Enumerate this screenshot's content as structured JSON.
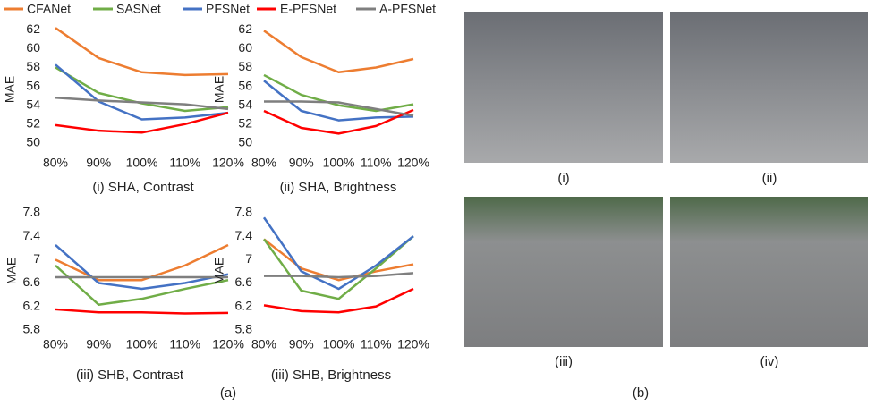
{
  "chart_data": [
    {
      "type": "line",
      "title": "(i) SHA, Contrast",
      "y_label": "MAE",
      "legend": "top",
      "grid": false,
      "categories": [
        "80%",
        "90%",
        "100%",
        "110%",
        "120%"
      ],
      "ylim": [
        48,
        62.5
      ],
      "yticks": [
        50,
        52,
        54,
        56,
        58,
        60,
        62
      ],
      "series": [
        {
          "name": "CFANet",
          "color": "#ed7d31",
          "values": [
            62.2,
            59.0,
            57.5,
            57.2,
            57.3
          ]
        },
        {
          "name": "SASNet",
          "color": "#70ad47",
          "values": [
            58.0,
            55.3,
            54.2,
            53.4,
            53.8
          ]
        },
        {
          "name": "PFSNet",
          "color": "#4472c4",
          "values": [
            58.3,
            54.4,
            52.5,
            52.7,
            53.2
          ]
        },
        {
          "name": "E-PFSNet",
          "color": "#ff0000",
          "values": [
            51.9,
            51.3,
            51.1,
            52.0,
            53.2
          ]
        },
        {
          "name": "A-PFSNet",
          "color": "#7f7f7f",
          "values": [
            54.8,
            54.5,
            54.3,
            54.1,
            53.6
          ]
        }
      ]
    },
    {
      "type": "line",
      "title": "(ii) SHA, Brightness",
      "y_label": "MAE",
      "grid": false,
      "categories": [
        "80%",
        "90%",
        "100%",
        "110%",
        "120%"
      ],
      "ylim": [
        48,
        62.5
      ],
      "yticks": [
        50,
        52,
        54,
        56,
        58,
        60,
        62
      ],
      "series": [
        {
          "color": "#ed7d31",
          "values": [
            61.9,
            59.1,
            57.5,
            58.0,
            58.9
          ]
        },
        {
          "color": "#70ad47",
          "values": [
            57.2,
            55.1,
            54.0,
            53.4,
            54.1
          ]
        },
        {
          "color": "#4472c4",
          "values": [
            56.6,
            53.4,
            52.4,
            52.7,
            52.8
          ]
        },
        {
          "color": "#ff0000",
          "values": [
            53.4,
            51.6,
            51.0,
            51.8,
            53.5
          ]
        },
        {
          "color": "#7f7f7f",
          "values": [
            54.4,
            54.4,
            54.3,
            53.6,
            52.9
          ]
        }
      ]
    },
    {
      "type": "line",
      "title": "(iii) SHB, Contrast",
      "y_label": "MAE",
      "grid": false,
      "categories": [
        "80%",
        "90%",
        "100%",
        "110%",
        "120%"
      ],
      "ylim": [
        5.4,
        7.8
      ],
      "yticks": [
        5.8,
        6.2,
        6.6,
        7,
        7.4,
        7.8
      ],
      "series": [
        {
          "color": "#ed7d31",
          "values": [
            7.0,
            6.65,
            6.65,
            6.9,
            7.25
          ]
        },
        {
          "color": "#70ad47",
          "values": [
            6.9,
            6.23,
            6.33,
            6.5,
            6.65
          ]
        },
        {
          "color": "#4472c4",
          "values": [
            7.25,
            6.6,
            6.5,
            6.6,
            6.75
          ]
        },
        {
          "color": "#ff0000",
          "values": [
            6.15,
            6.1,
            6.1,
            6.08,
            6.09
          ]
        },
        {
          "color": "#7f7f7f",
          "values": [
            6.7,
            6.7,
            6.7,
            6.7,
            6.7
          ]
        }
      ]
    },
    {
      "type": "line",
      "title": "(iii) SHB, Brightness",
      "y_label": "MAE",
      "grid": false,
      "categories": [
        "80%",
        "90%",
        "100%",
        "110%",
        "120%"
      ],
      "ylim": [
        5.4,
        7.8
      ],
      "yticks": [
        5.8,
        6.2,
        6.6,
        7,
        7.4,
        7.8
      ],
      "series": [
        {
          "color": "#ed7d31",
          "values": [
            7.35,
            6.85,
            6.65,
            6.8,
            6.92
          ]
        },
        {
          "color": "#70ad47",
          "values": [
            7.35,
            6.47,
            6.33,
            6.85,
            7.4
          ]
        },
        {
          "color": "#4472c4",
          "values": [
            7.72,
            6.8,
            6.5,
            6.9,
            7.4
          ]
        },
        {
          "color": "#ff0000",
          "values": [
            6.22,
            6.12,
            6.1,
            6.2,
            6.5
          ]
        },
        {
          "color": "#7f7f7f",
          "values": [
            6.72,
            6.72,
            6.7,
            6.72,
            6.77
          ]
        }
      ]
    }
  ],
  "figure": {
    "panel_a": "(a)",
    "panel_b": "(b)",
    "photo_captions": [
      "(i)",
      "(ii)",
      "(iii)",
      "(iv)"
    ]
  }
}
